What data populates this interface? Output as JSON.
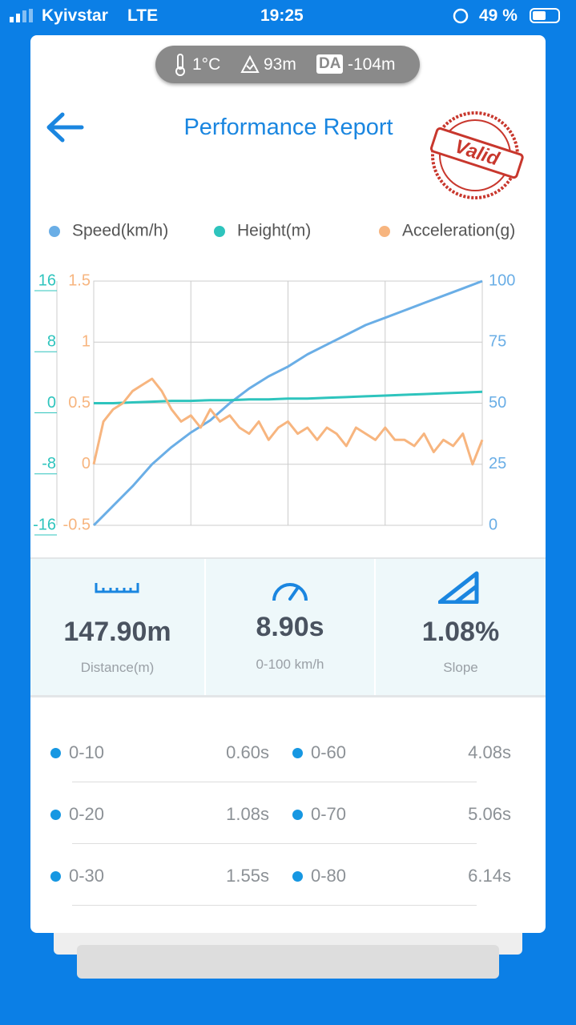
{
  "status_bar": {
    "carrier": "Kyivstar",
    "network": "LTE",
    "time": "19:25",
    "battery": "49 %"
  },
  "conditions": {
    "temperature": "1°C",
    "altitude": "93m",
    "da_badge": "DA",
    "density_altitude": "-104m"
  },
  "header": {
    "title": "Performance Report",
    "stamp": "Valid"
  },
  "chart_data": {
    "type": "line",
    "grid": true,
    "ylim": [
      -0.5,
      1.5
    ],
    "yticks": [
      -0.5,
      0,
      0.5,
      1,
      1.5
    ],
    "y2lim": [
      0,
      100
    ],
    "y2ticks": [
      0,
      25,
      50,
      75,
      100
    ],
    "y3lim": [
      -16,
      16
    ],
    "y3ticks": [
      -16,
      -8,
      0,
      8,
      16
    ],
    "series": [
      {
        "name": "Speed(km/h)",
        "color": "#6aaee6",
        "axis": "y2",
        "values": [
          0,
          8,
          16,
          25,
          32,
          38,
          43,
          50,
          56,
          61,
          65,
          70,
          74,
          78,
          82,
          85,
          88,
          91,
          94,
          97,
          100
        ]
      },
      {
        "name": "Height(m)",
        "color": "#2ec4bd",
        "axis": "y3",
        "values": [
          0,
          0,
          0.1,
          0.2,
          0.3,
          0.3,
          0.4,
          0.4,
          0.5,
          0.5,
          0.6,
          0.6,
          0.7,
          0.8,
          0.9,
          1.0,
          1.1,
          1.2,
          1.3,
          1.4,
          1.5
        ]
      },
      {
        "name": "Acceleration(g)",
        "color": "#f7b57f",
        "axis": "y",
        "values": [
          0,
          0.35,
          0.45,
          0.5,
          0.6,
          0.65,
          0.7,
          0.6,
          0.45,
          0.35,
          0.4,
          0.3,
          0.45,
          0.35,
          0.4,
          0.3,
          0.25,
          0.35,
          0.2,
          0.3,
          0.35,
          0.25,
          0.3,
          0.2,
          0.3,
          0.25,
          0.15,
          0.3,
          0.25,
          0.2,
          0.3,
          0.2,
          0.2,
          0.15,
          0.25,
          0.1,
          0.2,
          0.15,
          0.25,
          0,
          0.2
        ]
      }
    ]
  },
  "stats": [
    {
      "value": "147.90m",
      "label": "Distance(m)"
    },
    {
      "value": "8.90s",
      "label": "0-100 km/h"
    },
    {
      "value": "1.08%",
      "label": "Slope"
    }
  ],
  "splits": [
    {
      "range": "0-10",
      "time": "0.60s"
    },
    {
      "range": "0-60",
      "time": "4.08s"
    },
    {
      "range": "0-20",
      "time": "1.08s"
    },
    {
      "range": "0-70",
      "time": "5.06s"
    },
    {
      "range": "0-30",
      "time": "1.55s"
    },
    {
      "range": "0-80",
      "time": "6.14s"
    }
  ]
}
